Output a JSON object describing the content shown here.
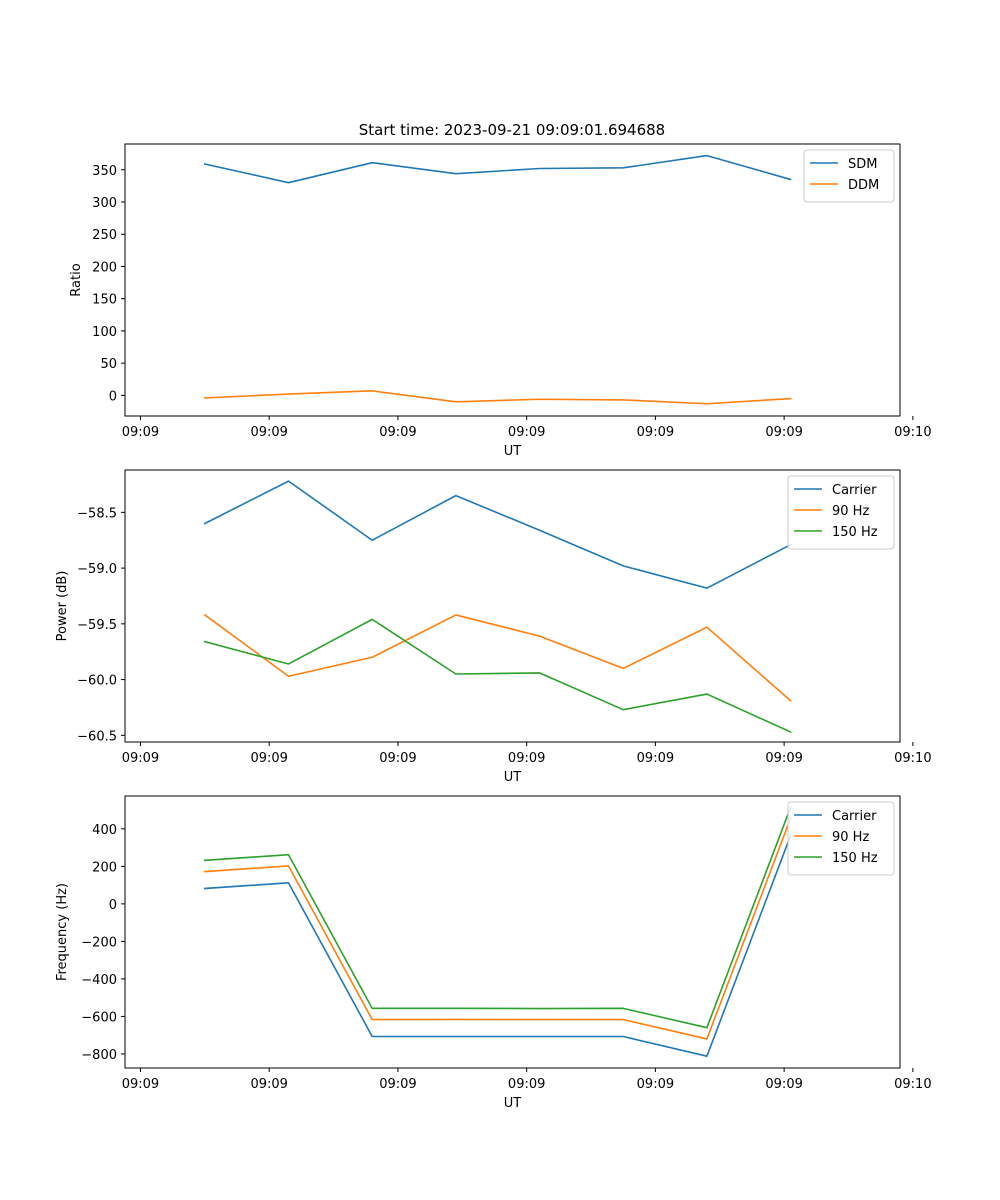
{
  "figure": {
    "title": "Start time: 2023-09-21 09:09:01.694688"
  },
  "chart_data": [
    {
      "type": "line",
      "title": "Start time: 2023-09-21 09:09:01.694688",
      "xlabel": "UT",
      "ylabel": "Ratio",
      "x_tick_labels": [
        "09:09",
        "09:09",
        "09:09",
        "09:09",
        "09:09",
        "09:09",
        "09:10"
      ],
      "y_ticks": [
        0,
        50,
        100,
        150,
        200,
        250,
        300,
        350
      ],
      "ylim": [
        -32,
        390
      ],
      "x": [
        0.5,
        1.15,
        1.8,
        2.45,
        3.1,
        3.75,
        4.4,
        5.05
      ],
      "xlim": [
        -0.12,
        5.9
      ],
      "x_ticks": [
        0,
        1,
        2,
        3,
        4,
        5,
        6
      ],
      "legend": "top-right",
      "series": [
        {
          "name": "SDM",
          "color": "#1f77b4",
          "values": [
            359,
            330,
            361,
            344,
            352,
            353,
            372,
            335
          ]
        },
        {
          "name": "DDM",
          "color": "#ff7f0e",
          "values": [
            -4,
            2,
            7,
            -10,
            -6,
            -7,
            -13,
            -5
          ]
        }
      ]
    },
    {
      "type": "line",
      "title": "",
      "xlabel": "UT",
      "ylabel": "Power (dB)",
      "x_tick_labels": [
        "09:09",
        "09:09",
        "09:09",
        "09:09",
        "09:09",
        "09:09",
        "09:10"
      ],
      "y_ticks": [
        -58.5,
        -59.0,
        -59.5,
        -60.0,
        -60.5
      ],
      "y_tick_labels": [
        "−58.5",
        "−59.0",
        "−59.5",
        "−60.0",
        "−60.5"
      ],
      "ylim": [
        -60.56,
        -58.12
      ],
      "x": [
        0.5,
        1.15,
        1.8,
        2.45,
        3.1,
        3.75,
        4.4,
        5.05
      ],
      "xlim": [
        -0.12,
        5.9
      ],
      "x_ticks": [
        0,
        1,
        2,
        3,
        4,
        5,
        6
      ],
      "legend": "top-right",
      "series": [
        {
          "name": "Carrier",
          "color": "#1f77b4",
          "values": [
            -58.6,
            -58.22,
            -58.75,
            -58.35,
            -58.66,
            -58.98,
            -59.18,
            -58.79
          ]
        },
        {
          "name": "90 Hz",
          "color": "#ff7f0e",
          "values": [
            -59.42,
            -59.97,
            -59.8,
            -59.42,
            -59.61,
            -59.9,
            -59.53,
            -60.19
          ]
        },
        {
          "name": "150 Hz",
          "color": "#2ca02c",
          "values": [
            -59.66,
            -59.86,
            -59.46,
            -59.95,
            -59.94,
            -60.27,
            -60.13,
            -60.47
          ]
        }
      ]
    },
    {
      "type": "line",
      "title": "",
      "xlabel": "UT",
      "ylabel": "Frequency (Hz)",
      "x_tick_labels": [
        "09:09",
        "09:09",
        "09:09",
        "09:09",
        "09:09",
        "09:09",
        "09:10"
      ],
      "y_ticks": [
        400,
        200,
        0,
        -200,
        -400,
        -600,
        -800
      ],
      "y_tick_labels": [
        "400",
        "200",
        "0",
        "−200",
        "−400",
        "−600",
        "−800"
      ],
      "ylim": [
        -875,
        575
      ],
      "x": [
        0.5,
        1.15,
        1.8,
        2.45,
        3.1,
        3.75,
        4.4,
        5.05
      ],
      "xlim": [
        -0.12,
        5.9
      ],
      "x_ticks": [
        0,
        1,
        2,
        3,
        4,
        5,
        6
      ],
      "legend": "top-right",
      "series": [
        {
          "name": "Carrier",
          "color": "#1f77b4",
          "values": [
            82,
            112,
            -707,
            -707,
            -707,
            -707,
            -812,
            364
          ]
        },
        {
          "name": "90 Hz",
          "color": "#ff7f0e",
          "values": [
            172,
            202,
            -617,
            -616,
            -617,
            -617,
            -720,
            456
          ]
        },
        {
          "name": "150 Hz",
          "color": "#2ca02c",
          "values": [
            232,
            262,
            -557,
            -557,
            -558,
            -557,
            -660,
            514
          ]
        }
      ]
    }
  ]
}
